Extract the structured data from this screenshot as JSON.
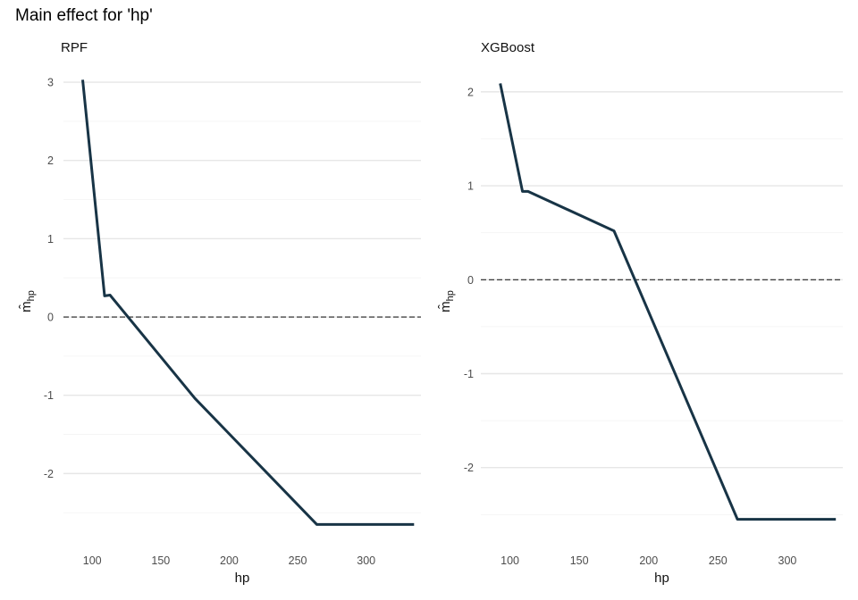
{
  "title": "Main effect for 'hp'",
  "colors": {
    "line": "#183446",
    "zero_line": "#222222",
    "grid": "#e6e6e6"
  },
  "chart_data": [
    {
      "type": "line",
      "panel_title": "RPF",
      "xlabel": "hp",
      "ylabel": "m̂",
      "ylabel_subscript": "hp",
      "xlim": [
        79,
        340
      ],
      "ylim": [
        -2.68,
        3.08
      ],
      "x_ticks": [
        100,
        150,
        200,
        250,
        300
      ],
      "y_ticks": [
        -2,
        -1,
        0,
        1,
        2,
        3
      ],
      "reference_line": {
        "y": 0,
        "style": "dashed"
      },
      "grid": true,
      "x": [
        93,
        109,
        113,
        175,
        264,
        335
      ],
      "y": [
        3.03,
        0.27,
        0.28,
        -1.04,
        -2.65,
        -2.65
      ]
    },
    {
      "type": "line",
      "panel_title": "XGBoost",
      "xlabel": "hp",
      "ylabel": "m̂",
      "ylabel_subscript": "hp",
      "xlim": [
        79,
        340
      ],
      "ylim": [
        -2.63,
        2.17
      ],
      "x_ticks": [
        100,
        150,
        200,
        250,
        300
      ],
      "y_ticks": [
        -2,
        -1,
        0,
        1,
        2
      ],
      "reference_line": {
        "y": 0,
        "style": "dashed"
      },
      "grid": true,
      "x": [
        93,
        109,
        113,
        175,
        264,
        335
      ],
      "y": [
        2.09,
        0.94,
        0.94,
        0.52,
        -2.55,
        -2.55
      ]
    }
  ]
}
